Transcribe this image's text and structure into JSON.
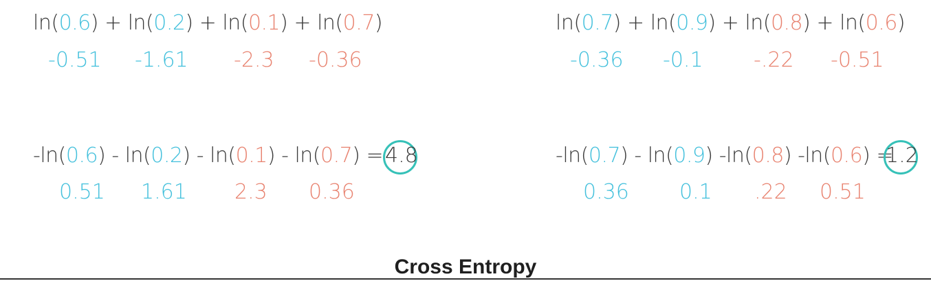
{
  "left": {
    "top_equation": {
      "parts": [
        {
          "t": "ln(",
          "c": "dark"
        },
        {
          "t": "0.6",
          "c": "blue"
        },
        {
          "t": ") + ln(",
          "c": "dark"
        },
        {
          "t": "0.2",
          "c": "blue"
        },
        {
          "t": ") + ln(",
          "c": "dark"
        },
        {
          "t": "0.1",
          "c": "red"
        },
        {
          "t": ") + ln(",
          "c": "dark"
        },
        {
          "t": "0.7",
          "c": "red"
        },
        {
          "t": ")",
          "c": "dark"
        }
      ]
    },
    "top_values": [
      {
        "t": "-0.51",
        "c": "blue"
      },
      {
        "t": "-1.61",
        "c": "blue"
      },
      {
        "t": "-2.3",
        "c": "red"
      },
      {
        "t": "-0.36",
        "c": "red"
      }
    ],
    "bottom_equation": {
      "parts": [
        {
          "t": "-ln(",
          "c": "dark"
        },
        {
          "t": "0.6",
          "c": "blue"
        },
        {
          "t": ") - ln(",
          "c": "dark"
        },
        {
          "t": "0.2",
          "c": "blue"
        },
        {
          "t": ") - ln(",
          "c": "dark"
        },
        {
          "t": "0.1",
          "c": "red"
        },
        {
          "t": ") - ln(",
          "c": "dark"
        },
        {
          "t": "0.7",
          "c": "red"
        },
        {
          "t": ")  =",
          "c": "dark"
        }
      ],
      "result": "4.8"
    },
    "bottom_values": [
      {
        "t": "0.51",
        "c": "blue"
      },
      {
        "t": "1.61",
        "c": "blue"
      },
      {
        "t": "2.3",
        "c": "red"
      },
      {
        "t": "0.36",
        "c": "red"
      }
    ]
  },
  "right": {
    "top_equation": {
      "parts": [
        {
          "t": "ln(",
          "c": "dark"
        },
        {
          "t": "0.7",
          "c": "blue"
        },
        {
          "t": ") + ln(",
          "c": "dark"
        },
        {
          "t": "0.9",
          "c": "blue"
        },
        {
          "t": ") + ln(",
          "c": "dark"
        },
        {
          "t": "0.8",
          "c": "red"
        },
        {
          "t": ") + ln(",
          "c": "dark"
        },
        {
          "t": "0.6",
          "c": "red"
        },
        {
          "t": ")",
          "c": "dark"
        }
      ]
    },
    "top_values": [
      {
        "t": "-0.36",
        "c": "blue"
      },
      {
        "t": "-0.1",
        "c": "blue"
      },
      {
        "t": "-.22",
        "c": "red"
      },
      {
        "t": "-0.51",
        "c": "red"
      }
    ],
    "bottom_equation": {
      "parts": [
        {
          "t": "-ln(",
          "c": "dark"
        },
        {
          "t": "0.7",
          "c": "blue"
        },
        {
          "t": ") - ln(",
          "c": "dark"
        },
        {
          "t": "0.9",
          "c": "blue"
        },
        {
          "t": ") -ln(",
          "c": "dark"
        },
        {
          "t": "0.8",
          "c": "red"
        },
        {
          "t": ") -ln(",
          "c": "dark"
        },
        {
          "t": "0.6",
          "c": "red"
        },
        {
          "t": ") =",
          "c": "dark"
        }
      ],
      "result": "1.2"
    },
    "bottom_values": [
      {
        "t": "0.36",
        "c": "blue"
      },
      {
        "t": "0.1",
        "c": "blue"
      },
      {
        "t": ".22",
        "c": "red"
      },
      {
        "t": "0.51",
        "c": "red"
      }
    ]
  },
  "title": "Cross Entropy",
  "colors": {
    "correct_prob": "#43c0dc",
    "wrong_prob": "#e8826f",
    "circle": "#36c1b8"
  }
}
